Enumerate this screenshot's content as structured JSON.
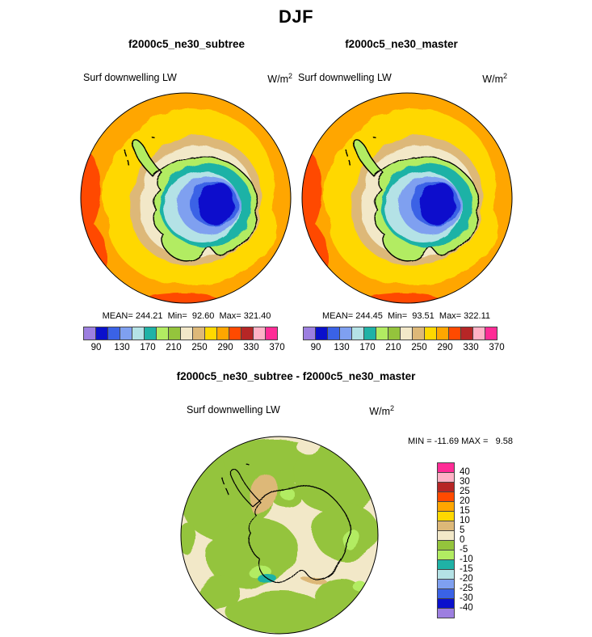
{
  "title": "DJF",
  "panels": {
    "left": {
      "title": "f2000c5_ne30_subtree",
      "field_label": "Surf downwelling LW",
      "units": "W/m",
      "units_sup": "2",
      "stats": "MEAN= 244.21  Min=  92.60  Max= 321.40"
    },
    "right": {
      "title": "f2000c5_ne30_master",
      "field_label": "Surf downwelling LW",
      "units": "W/m",
      "units_sup": "2",
      "stats": "MEAN= 244.45  Min=  93.51  Max= 322.11"
    },
    "diff": {
      "title": "f2000c5_ne30_subtree - f2000c5_ne30_master",
      "field_label": "Surf downwelling LW",
      "units": "W/m",
      "units_sup": "2",
      "minmax": "MIN = -11.69 MAX =   9.58"
    }
  },
  "colorbar": {
    "ticks": [
      90,
      130,
      170,
      210,
      250,
      290,
      330,
      370
    ],
    "colors": [
      "#9d7fe0",
      "#0a10cc",
      "#3a62e6",
      "#7fa0f0",
      "#b4e2e6",
      "#1fb2a6",
      "#b2ec62",
      "#94c43c",
      "#f2e8c8",
      "#ddb878",
      "#ffd800",
      "#ffa600",
      "#ff4a00",
      "#b62626",
      "#ffb2c6",
      "#ff2c96"
    ]
  },
  "diff_colorbar": {
    "ticks": [
      40,
      30,
      25,
      20,
      15,
      10,
      5,
      0,
      -5,
      -10,
      -15,
      -20,
      -25,
      -30,
      -40
    ],
    "colors": [
      "#ff2c96",
      "#ffb2c6",
      "#b62626",
      "#ff4a00",
      "#ffa600",
      "#ffd800",
      "#ddb878",
      "#f2e8c8",
      "#94c43c",
      "#b2ec62",
      "#1fb2a6",
      "#b4e2e6",
      "#7fa0f0",
      "#3a62e6",
      "#0a10cc",
      "#9d7fe0"
    ]
  },
  "chart_data": {
    "type": "heatmap",
    "subtype": "polar-stereographic-filled-contour-maps",
    "season": "DJF",
    "variable": "Surf downwelling LW",
    "units": "W/m^2",
    "projection": "south-polar (Antarctica centered)",
    "panels": [
      {
        "name": "f2000c5_ne30_subtree",
        "mean": 244.21,
        "min": 92.6,
        "max": 321.4,
        "contour_levels": [
          90,
          130,
          170,
          210,
          250,
          290,
          330,
          370
        ],
        "pattern": "high values (orange/red ~290-330) over surrounding ocean, yellow ring, tan/cream near coast, decreasing inland through green/teal/cyan/blue to minimum dark blue (~90-130) over East Antarctic plateau"
      },
      {
        "name": "f2000c5_ne30_master",
        "mean": 244.45,
        "min": 93.51,
        "max": 322.11,
        "contour_levels": [
          90,
          130,
          170,
          210,
          250,
          290,
          330,
          370
        ],
        "pattern": "nearly identical spatial pattern to subtree panel"
      },
      {
        "name": "f2000c5_ne30_subtree - f2000c5_ne30_master",
        "min": -11.69,
        "max": 9.58,
        "contour_levels": [
          40,
          30,
          25,
          20,
          15,
          10,
          5,
          0,
          -5,
          -10,
          -15,
          -20,
          -25,
          -30,
          -40
        ],
        "pattern": "mostly 0 to 5 (cream) and -5 to 0 (green) patches, one 5-10 tan patch near the Antarctic Peninsula, small -15 to -10 teal patch west of the Ross Sea"
      }
    ],
    "palette_low_to_high": [
      "#9d7fe0",
      "#0a10cc",
      "#3a62e6",
      "#7fa0f0",
      "#b4e2e6",
      "#1fb2a6",
      "#b2ec62",
      "#94c43c",
      "#f2e8c8",
      "#ddb878",
      "#ffd800",
      "#ffa600",
      "#ff4a00",
      "#b62626",
      "#ffb2c6",
      "#ff2c96"
    ]
  }
}
